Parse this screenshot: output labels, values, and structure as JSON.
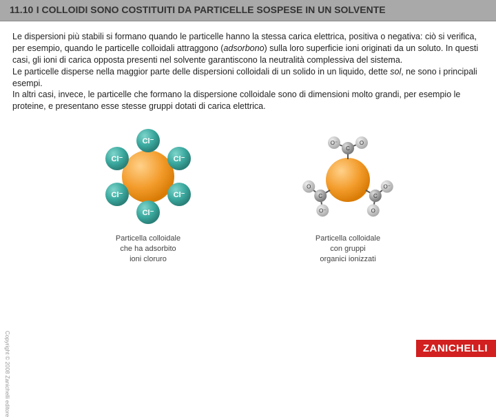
{
  "titleBar": {
    "number": "11.10",
    "title": "I COLLOIDI SONO COSTITUITI DA PARTICELLE SOSPESE IN UN SOLVENTE"
  },
  "bodyText": "Le dispersioni più stabili si formano quando le particelle hanno la stessa carica elettrica, positiva o negativa: ciò si verifica, per esempio, quando le particelle colloidali attraggono (<em>adsorbono</em>) sulla loro superficie ioni originati da un soluto. In questi casi, gli ioni di carica opposta presenti nel solvente garantiscono la neutralità complessiva del sistema.<br>Le particelle disperse nella maggior parte delle dispersioni colloidali di un solido in un liquido, dette <em>sol</em>, ne sono i principali esempi.<br>In altri casi, invece, le particelle che formano la dispersione colloidale sono di dimensioni molto grandi, per esempio le proteine, e presentano esse stesse gruppi dotati di carica elettrica.",
  "figures": [
    {
      "captionLines": [
        "Particella colloidale",
        "che ha adsorbito",
        "ioni cloruro"
      ],
      "chlorideLabel": "Cl⁻",
      "colors": {
        "colloid": "#f39c2c",
        "colloidShade": "#d97c06",
        "ion": "#3aa89e",
        "ionShade": "#2a8078"
      }
    },
    {
      "captionLines": [
        "Particella colloidale",
        "con gruppi",
        "organici ionizzati"
      ],
      "atomLabels": {
        "C": "C",
        "O": "O",
        "Ominus": "O⁻"
      },
      "colors": {
        "colloid": "#f39c2c",
        "colloidShade": "#d97c06",
        "carbon": "#888888",
        "oxygen": "#bdbdbd",
        "bond": "#555555"
      }
    }
  ],
  "copyright": "Copyright © 2008 Zanichelli editore",
  "brand": "ZANICHELLI"
}
